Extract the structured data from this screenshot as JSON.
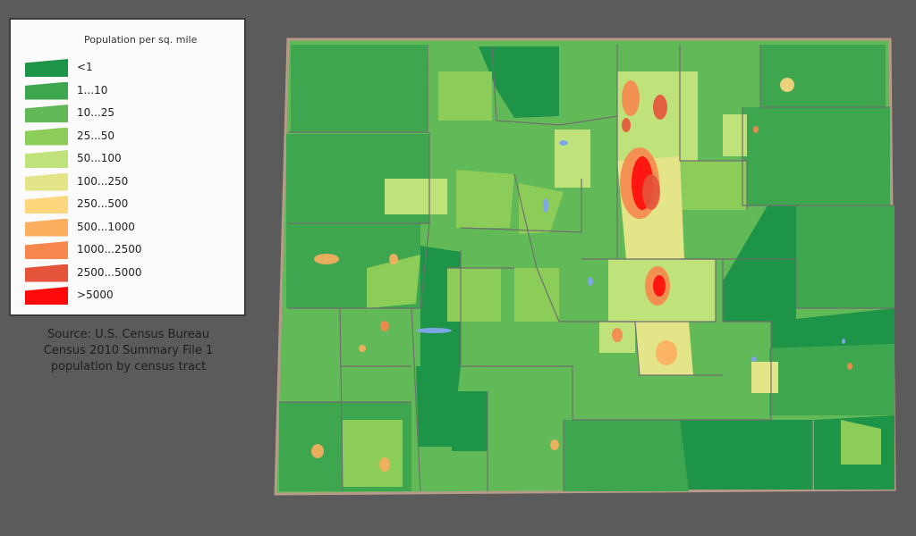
{
  "legend": {
    "title": "Population per sq. mile",
    "classes": [
      {
        "label": "<1",
        "color": "#1e9448"
      },
      {
        "label": "1...10",
        "color": "#3ea64f"
      },
      {
        "label": "10...25",
        "color": "#62b957"
      },
      {
        "label": "25...50",
        "color": "#8ccd5a"
      },
      {
        "label": "50...100",
        "color": "#bfe27a"
      },
      {
        "label": "100...250",
        "color": "#e4e488"
      },
      {
        "label": "250...500",
        "color": "#fcd77e"
      },
      {
        "label": "500...1000",
        "color": "#fcae5f"
      },
      {
        "label": "1000...2500",
        "color": "#f6874d"
      },
      {
        "label": "2500...5000",
        "color": "#e5533a"
      },
      {
        "label": ">5000",
        "color": "#ff0a0a"
      }
    ]
  },
  "source": {
    "line1": "Source: U.S. Census Bureau",
    "line2": "Census 2010 Summary File 1",
    "line3": "population by census tract"
  },
  "map": {
    "water_color": "#7ea6e6",
    "border_color": "#6f6f6f",
    "outline_color": "#b89a8a"
  }
}
